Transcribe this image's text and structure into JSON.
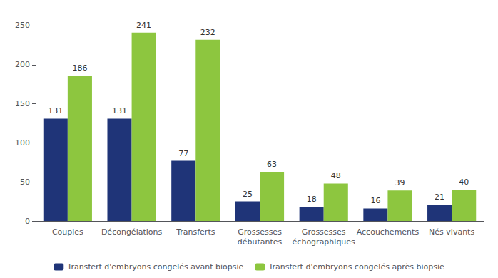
{
  "chart_data": {
    "type": "bar",
    "categories": [
      "Couples",
      "Décongélations",
      "Transferts",
      "Grossesses\ndébutantes",
      "Grossesses\néchographiques",
      "Accouchements",
      "Nés vivants"
    ],
    "series": [
      {
        "name": "Transfert d'embryons congelés avant biopsie",
        "color": "#1f3478",
        "values": [
          131,
          131,
          77,
          25,
          18,
          16,
          21
        ]
      },
      {
        "name": "Transfert d'embryons congelés après biopsie",
        "color": "#8dc63f",
        "values": [
          186,
          241,
          232,
          63,
          48,
          39,
          40
        ]
      }
    ],
    "ylim": [
      0,
      260
    ],
    "yticks": [
      0,
      50,
      100,
      150,
      200,
      250
    ],
    "grid": false,
    "legend": "bottom",
    "data_labels": true
  }
}
